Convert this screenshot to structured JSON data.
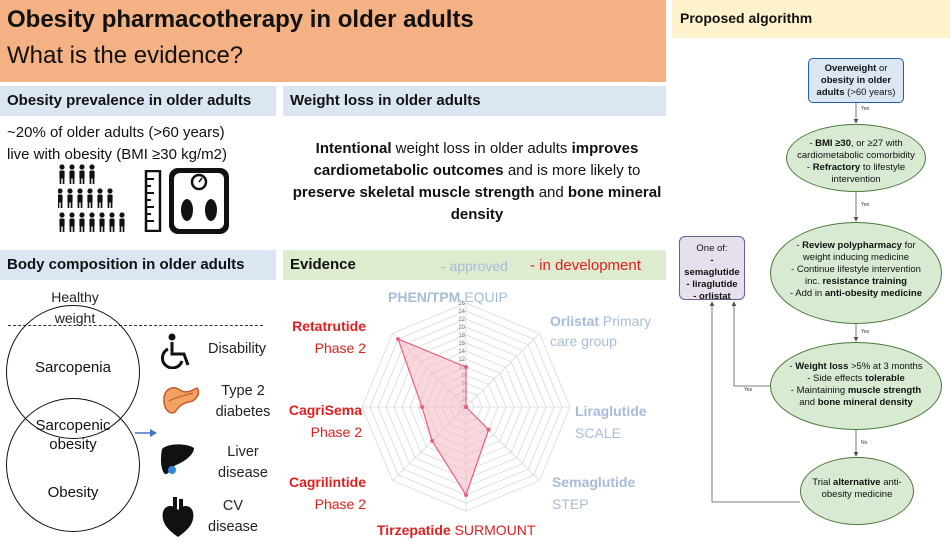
{
  "title": {
    "main": "Obesity pharmacotherapy in older adults",
    "sub": "What is the evidence?"
  },
  "prevalence": {
    "heading": "Obesity prevalence in older adults",
    "line1": "~20% of older adults (>60 years)",
    "line2": "live with obesity (BMI ≥30 kg/m2)",
    "icons": [
      "people-group-icon",
      "ruler-icon",
      "bathroom-scale-icon"
    ]
  },
  "weight_loss": {
    "heading": "Weight loss in older adults",
    "seg1": "Intentional",
    "seg2": " weight loss in older adults ",
    "seg3": "improves cardiometabolic outcomes",
    "seg4": " and is more likely to ",
    "seg5": "preserve skeletal muscle strength",
    "seg6": " and ",
    "seg7": "bone mineral density"
  },
  "body_comp": {
    "heading": "Body composition in older adults",
    "healthy": "Healthy weight",
    "sarcopenia": "Sarcopenia",
    "sarcopenic_obesity": "Sarcopenic obesity",
    "obesity": "Obesity",
    "conditions": [
      {
        "label": "Disability",
        "icon": "wheelchair-icon"
      },
      {
        "label": "Type 2 diabetes",
        "icon": "pancreas-icon"
      },
      {
        "label": "Liver disease",
        "icon": "liver-icon"
      },
      {
        "label": "CV disease",
        "icon": "heart-icon"
      }
    ]
  },
  "evidence": {
    "heading": "Evidence",
    "approved_legend": "- approved",
    "dev_legend": "- in development",
    "colors": {
      "approved": "#a6bcd8",
      "development": "#e02020",
      "fill": "#f4b6c2",
      "line": "#e8607a"
    },
    "labels": [
      {
        "drug": "PHEN/TPM",
        "trial": "EQUIP",
        "status": "approved"
      },
      {
        "drug": "Orlistat",
        "trial": "Primary care group",
        "status": "approved"
      },
      {
        "drug": "Liraglutide",
        "trial": "SCALE",
        "status": "approved"
      },
      {
        "drug": "Semaglutide",
        "trial": "STEP",
        "status": "approved"
      },
      {
        "drug": "Tirzepatide",
        "trial": "SURMOUNT",
        "status": "development"
      },
      {
        "drug": "Cagrilintide",
        "trial": "Phase 2",
        "status": "development"
      },
      {
        "drug": "CagriSema",
        "trial": "Phase 2",
        "status": "development"
      },
      {
        "drug": "Retatrutide",
        "trial": "Phase 2",
        "status": "development"
      }
    ]
  },
  "chart_data": {
    "type": "radar",
    "categories": [
      "PHEN/TPM EQUIP",
      "Orlistat Primary care group",
      "Liraglutide SCALE",
      "Semaglutide STEP",
      "Tirzepatide SURMOUNT",
      "Cagrilintide Phase 2",
      "CagriSema Phase 2",
      "Retatrutide Phase 2"
    ],
    "ticks": [
      "0",
      "2",
      "4",
      "6",
      "8",
      "10",
      "12",
      "14",
      "16",
      "18",
      "20",
      "22",
      "24",
      "26"
    ],
    "rlim": [
      0,
      26
    ],
    "series": [
      {
        "values": [
          10,
          0,
          0,
          8,
          22,
          12,
          11,
          24
        ]
      }
    ]
  },
  "algorithm": {
    "heading": "Proposed algorithm",
    "start": {
      "bold1": "Overweight",
      "t1": " or ",
      "bold2": "obesity in older adults",
      "t2": " (>60 years)"
    },
    "yes": "Yes",
    "box1": {
      "l1a": "- ",
      "l1b": "BMI ≥30",
      "l1c": ", or ≥27 with",
      "l2": "cardiometabolic comorbidity",
      "l3a": "- ",
      "l3b": "Refractory",
      "l3c": " to lifestyle",
      "l4": "intervention"
    },
    "box2": {
      "l1a": "- ",
      "l1b": "Review polypharmacy",
      "l1c": " for",
      "l2": "weight inducing medicine",
      "l3": "- Continue lifestyle intervention",
      "l4a": "inc. ",
      "l4b": "resistance training",
      "l5a": "- Add in ",
      "l5b": "anti-obesity medicine"
    },
    "box3": {
      "l1a": "- ",
      "l1b": "Weight loss",
      "l1c": " >5% at 3 months",
      "l2a": "- Side effects ",
      "l2b": "tolerable",
      "l3a": "- Maintaining ",
      "l3b": "muscle strength",
      "l4a": "and ",
      "l4b": "bone mineral density"
    },
    "box4": {
      "t1": "Trial ",
      "b1": "alternative",
      "t2": " anti-obesity medicine"
    },
    "alt": {
      "title": "One of:",
      "items": [
        "- semaglutide",
        "- liraglutide",
        "- orlistat"
      ]
    }
  }
}
